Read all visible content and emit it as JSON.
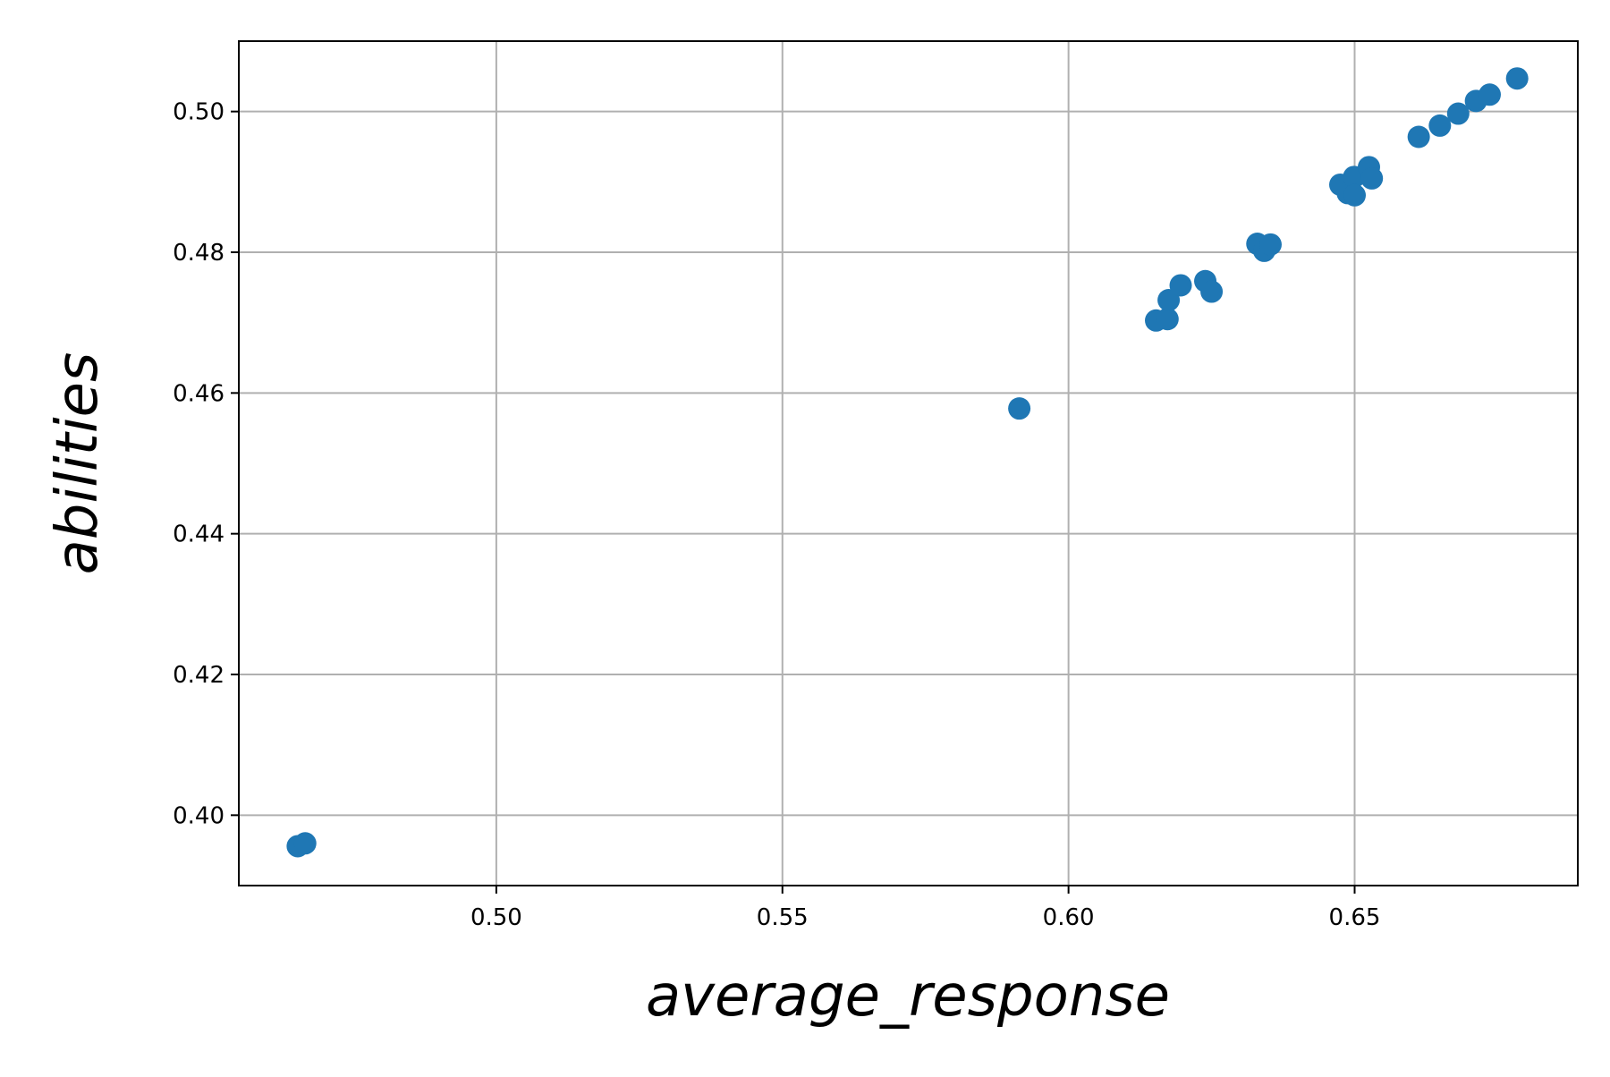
{
  "chart_data": {
    "type": "scatter",
    "title": "",
    "xlabel": "average_response",
    "ylabel": "abilities",
    "xlim": [
      0.455,
      0.689
    ],
    "ylim": [
      0.39,
      0.51
    ],
    "x_ticks": [
      0.5,
      0.55,
      0.6,
      0.65
    ],
    "x_tick_labels": [
      "0.50",
      "0.55",
      "0.60",
      "0.65"
    ],
    "y_ticks": [
      0.4,
      0.42,
      0.44,
      0.46,
      0.48,
      0.5
    ],
    "y_tick_labels": [
      "0.40",
      "0.42",
      "0.44",
      "0.46",
      "0.48",
      "0.50"
    ],
    "grid": true,
    "legend": "none",
    "marker_color": "#1f77b4",
    "grid_color": "#b0b0b0",
    "points": [
      {
        "x": 0.4653,
        "y": 0.3956
      },
      {
        "x": 0.4666,
        "y": 0.396
      },
      {
        "x": 0.5914,
        "y": 0.4578
      },
      {
        "x": 0.6153,
        "y": 0.4703
      },
      {
        "x": 0.6173,
        "y": 0.4705
      },
      {
        "x": 0.6175,
        "y": 0.4732
      },
      {
        "x": 0.6196,
        "y": 0.4753
      },
      {
        "x": 0.6239,
        "y": 0.4759
      },
      {
        "x": 0.625,
        "y": 0.4744
      },
      {
        "x": 0.633,
        "y": 0.4812
      },
      {
        "x": 0.6342,
        "y": 0.4802
      },
      {
        "x": 0.6353,
        "y": 0.4811
      },
      {
        "x": 0.6475,
        "y": 0.4896
      },
      {
        "x": 0.6488,
        "y": 0.4884
      },
      {
        "x": 0.6499,
        "y": 0.4907
      },
      {
        "x": 0.65,
        "y": 0.4881
      },
      {
        "x": 0.6525,
        "y": 0.4921
      },
      {
        "x": 0.653,
        "y": 0.4905
      },
      {
        "x": 0.6612,
        "y": 0.4964
      },
      {
        "x": 0.6649,
        "y": 0.498
      },
      {
        "x": 0.6681,
        "y": 0.4997
      },
      {
        "x": 0.6712,
        "y": 0.5015
      },
      {
        "x": 0.6736,
        "y": 0.5024
      },
      {
        "x": 0.6784,
        "y": 0.5047
      }
    ]
  }
}
